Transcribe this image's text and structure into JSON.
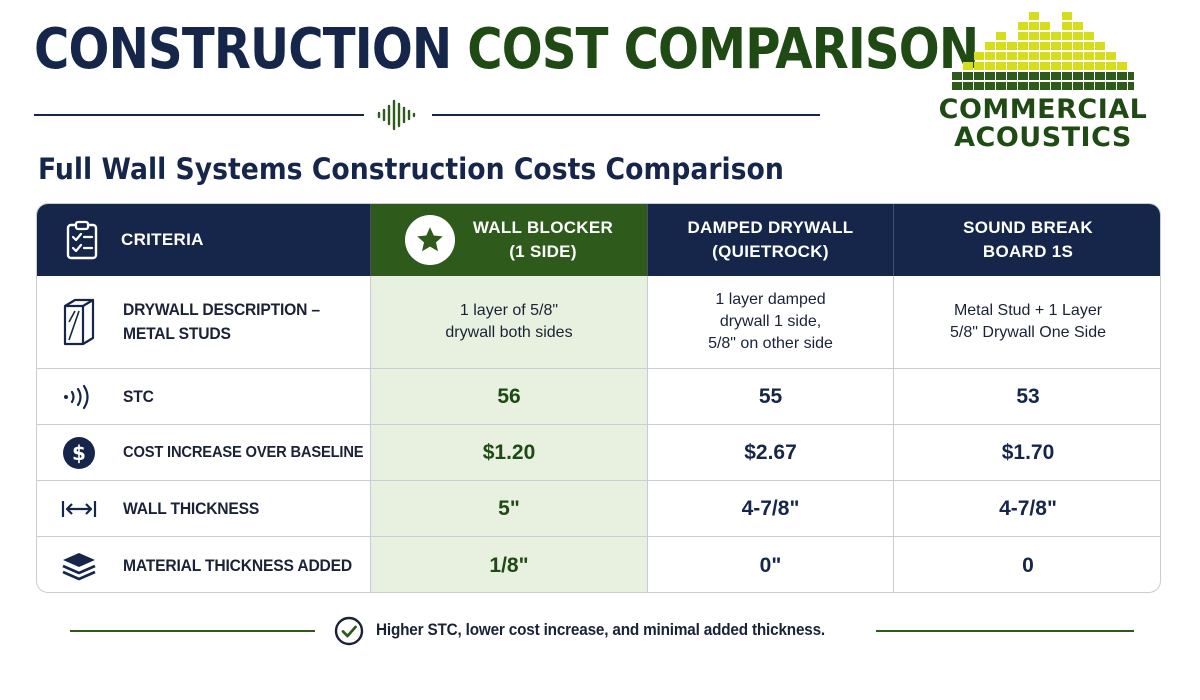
{
  "header": {
    "title_part1": "CONSTRUCTION",
    "title_part2": "COST COMPARISON",
    "subtitle": "Full Wall Systems Construction Costs Comparison"
  },
  "logo": {
    "line1": "COMMERCIAL",
    "line2": "ACOUSTICS"
  },
  "table": {
    "criteria_header": "CRITERIA",
    "columns": [
      {
        "line1": "WALL BLOCKER",
        "line2": "(1 SIDE)",
        "highlight": true
      },
      {
        "line1": "DAMPED DRYWALL",
        "line2": "(QUIETROCK)"
      },
      {
        "line1": "SOUND BREAK",
        "line2": "BOARD 1S"
      }
    ],
    "rows": [
      {
        "label_line1": "DRYWALL DESCRIPTION –",
        "label_line2": "METAL STUDS",
        "icon": "drywall-panel-icon",
        "values": [
          [
            "1 layer of 5/8\"",
            "drywall both sides"
          ],
          [
            "1 layer damped",
            "drywall 1 side,",
            "5/8\" on other side"
          ],
          [
            "Metal Stud + 1 Layer",
            "5/8\" Drywall One Side"
          ]
        ]
      },
      {
        "label": "STC",
        "icon": "sound-wave-icon",
        "values": [
          "56",
          "55",
          "53"
        ]
      },
      {
        "label": "COST INCREASE OVER BASELINE",
        "icon": "dollar-icon",
        "values": [
          "$1.20",
          "$2.67",
          "$1.70"
        ]
      },
      {
        "label": "WALL THICKNESS",
        "icon": "width-arrows-icon",
        "values": [
          "5\"",
          "4-7/8\"",
          "4-7/8\""
        ]
      },
      {
        "label": "MATERIAL THICKNESS ADDED",
        "icon": "layers-icon",
        "values": [
          "1/8\"",
          "0\"",
          "0"
        ]
      }
    ]
  },
  "footer": {
    "text": "Higher STC, lower cost increase, and minimal added thickness."
  },
  "colors": {
    "navy": "#15264a",
    "green": "#2e5a1c",
    "highlight_bg": "#e8f1df",
    "logo_yellow": "#d6dd1a"
  }
}
